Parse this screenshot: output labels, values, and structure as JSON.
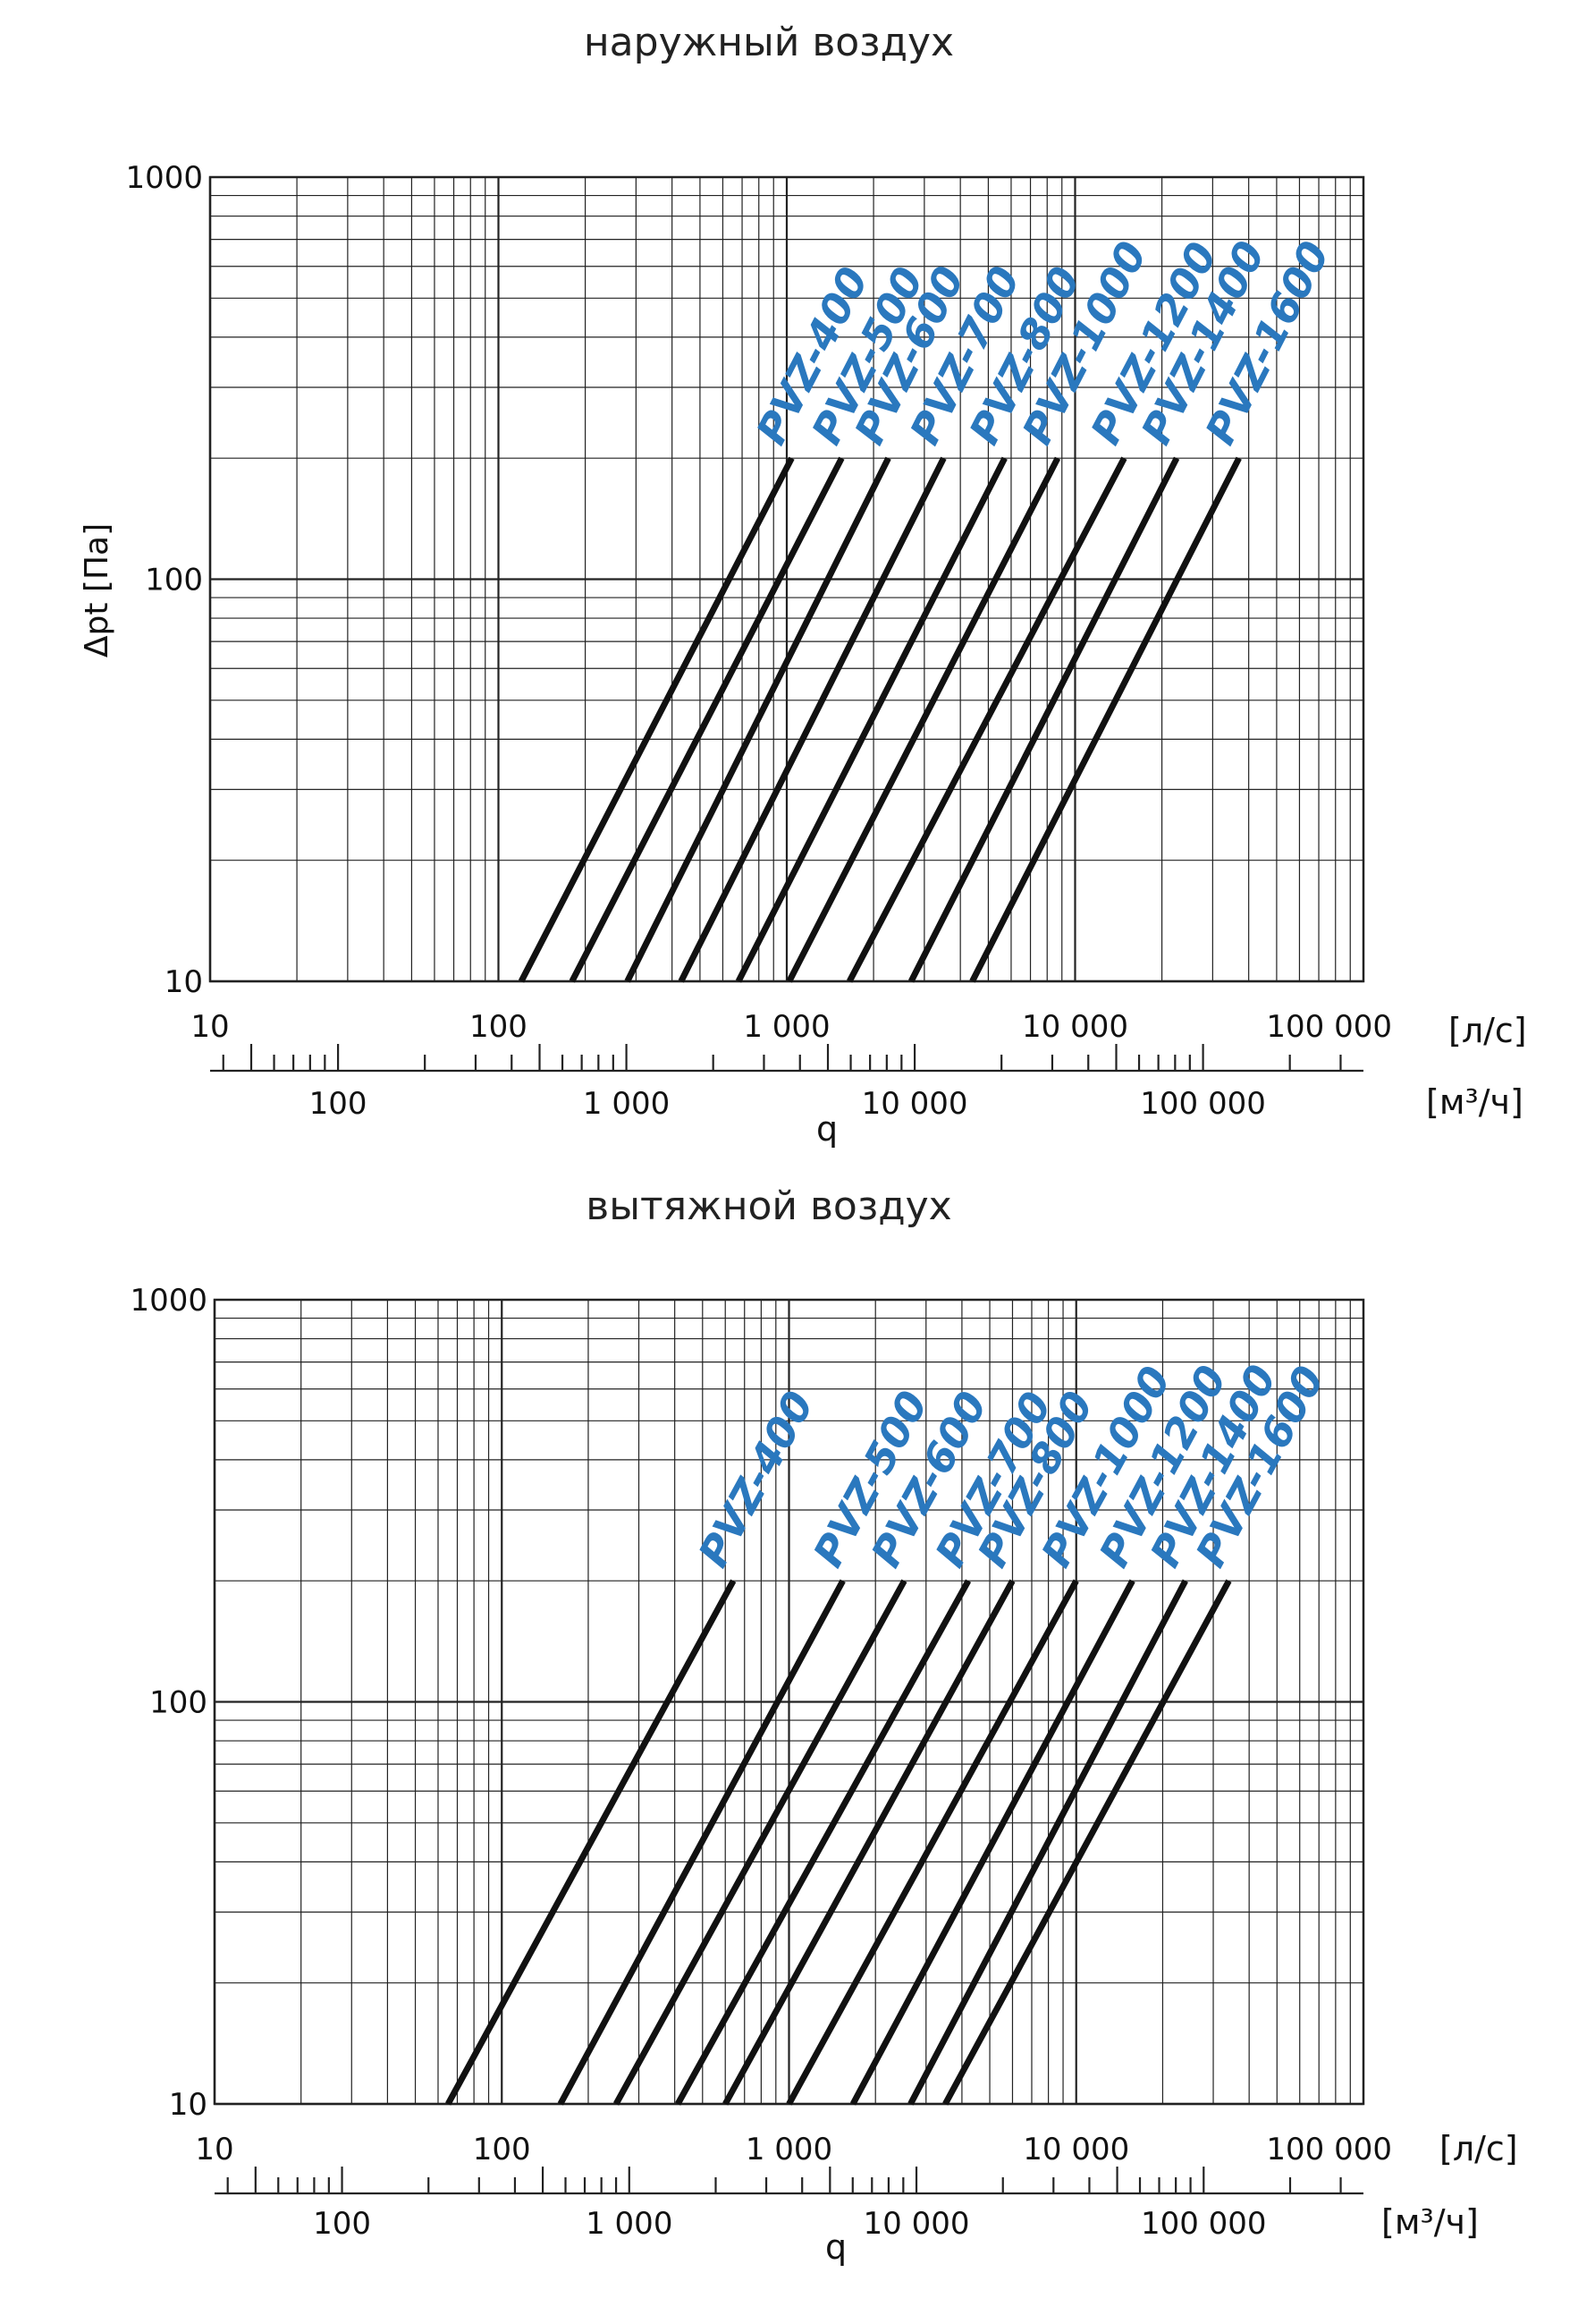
{
  "chart_data": [
    {
      "type": "line",
      "title": "наружный воздух",
      "xscale": "log",
      "yscale": "log",
      "xlim": [
        10,
        100000
      ],
      "ylim": [
        10,
        1000
      ],
      "grid": true,
      "x_ticks": [
        "10",
        "100",
        "1 000",
        "10 000",
        "100 000"
      ],
      "x_unit": "[л/с]",
      "x2_ticks": [
        "100",
        "1 000",
        "10 000",
        "100 000"
      ],
      "x2_unit": "[м³/ч]",
      "xlabel": "q",
      "ylabel": "Δpt [Па]",
      "y_ticks": [
        "10",
        "100",
        "1000"
      ],
      "series": [
        {
          "name": "PVZ-400",
          "x": [
            120,
            1040
          ],
          "y": [
            10,
            200
          ]
        },
        {
          "name": "PVZ-500",
          "x": [
            180,
            1550
          ],
          "y": [
            10,
            200
          ]
        },
        {
          "name": "PVZ-600",
          "x": [
            280,
            2250
          ],
          "y": [
            10,
            200
          ]
        },
        {
          "name": "PVZ-700",
          "x": [
            430,
            3500
          ],
          "y": [
            10,
            200
          ]
        },
        {
          "name": "PVZ-800",
          "x": [
            680,
            5700
          ],
          "y": [
            10,
            200
          ]
        },
        {
          "name": "PVZ-1000",
          "x": [
            1020,
            8700
          ],
          "y": [
            10,
            200
          ]
        },
        {
          "name": "PVZ-1200",
          "x": [
            1650,
            14800
          ],
          "y": [
            10,
            200
          ]
        },
        {
          "name": "PVZ-1400",
          "x": [
            2700,
            22500
          ],
          "y": [
            10,
            200
          ]
        },
        {
          "name": "PVZ-1600",
          "x": [
            4400,
            37000
          ],
          "y": [
            10,
            200
          ]
        }
      ]
    },
    {
      "type": "line",
      "title": "вытяжной воздух",
      "xscale": "log",
      "yscale": "log",
      "xlim": [
        10,
        100000
      ],
      "ylim": [
        10,
        1000
      ],
      "grid": true,
      "x_ticks": [
        "10",
        "100",
        "1 000",
        "10 000",
        "100 000"
      ],
      "x_unit": "[л/с]",
      "x2_ticks": [
        "100",
        "1 000",
        "10 000",
        "100 000"
      ],
      "x2_unit": "[м³/ч]",
      "xlabel": "q",
      "ylabel": "",
      "y_ticks": [
        "10",
        "100",
        "1000"
      ],
      "series": [
        {
          "name": "PVZ-400",
          "x": [
            65,
            640
          ],
          "y": [
            10,
            200
          ]
        },
        {
          "name": "PVZ-500",
          "x": [
            160,
            1540
          ],
          "y": [
            10,
            200
          ]
        },
        {
          "name": "PVZ-600",
          "x": [
            250,
            2520
          ],
          "y": [
            10,
            200
          ]
        },
        {
          "name": "PVZ-700",
          "x": [
            410,
            4210
          ],
          "y": [
            10,
            200
          ]
        },
        {
          "name": "PVZ-800",
          "x": [
            600,
            6000
          ],
          "y": [
            10,
            200
          ]
        },
        {
          "name": "PVZ-1000",
          "x": [
            1000,
            10000
          ],
          "y": [
            10,
            200
          ]
        },
        {
          "name": "PVZ-1200",
          "x": [
            1670,
            15700
          ],
          "y": [
            10,
            200
          ]
        },
        {
          "name": "PVZ-1400",
          "x": [
            2650,
            24000
          ],
          "y": [
            10,
            200
          ]
        },
        {
          "name": "PVZ-1600",
          "x": [
            3500,
            34000
          ],
          "y": [
            10,
            200
          ]
        }
      ]
    }
  ]
}
